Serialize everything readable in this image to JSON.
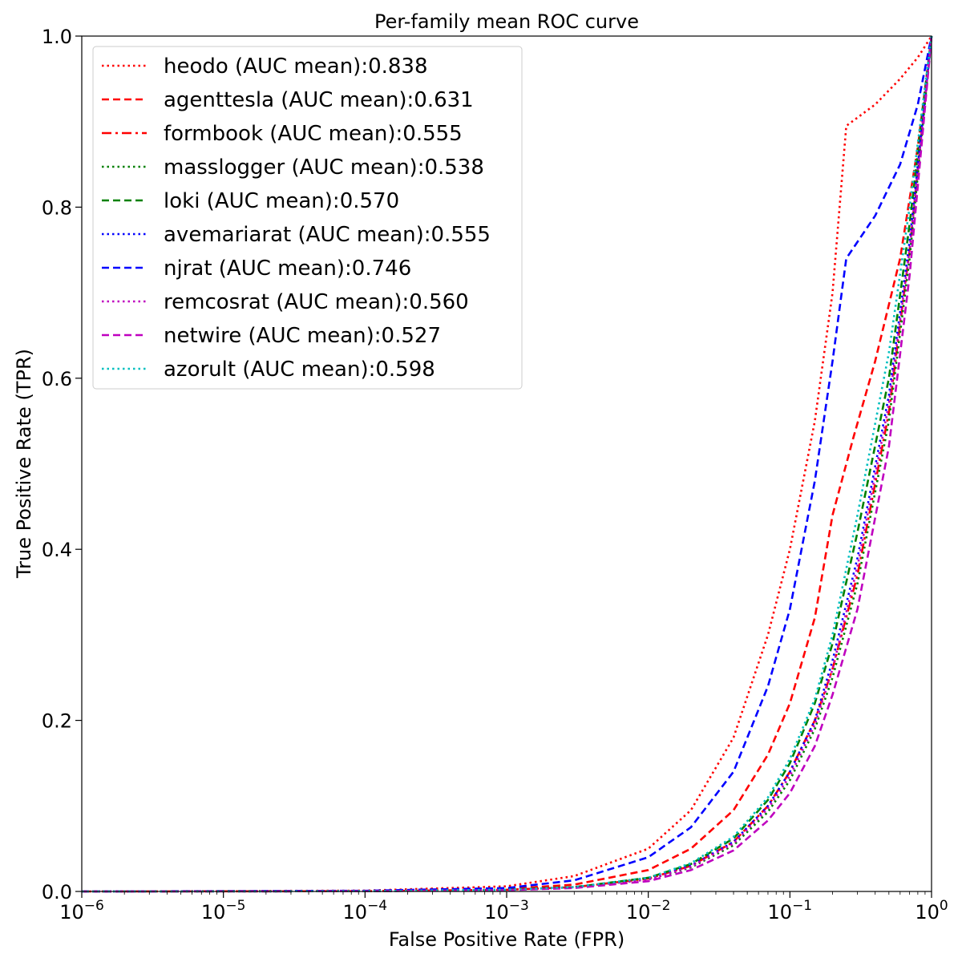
{
  "chart_data": {
    "type": "line",
    "title": "Per-family mean ROC curve",
    "xlabel": "False Positive Rate (FPR)",
    "ylabel": "True Positive Rate (TPR)",
    "xscale": "log",
    "xlim": [
      1e-06,
      1
    ],
    "ylim": [
      0.0,
      1.0
    ],
    "x_ticks": [
      {
        "value": 1e-06,
        "base": "10",
        "exp": "−6"
      },
      {
        "value": 1e-05,
        "base": "10",
        "exp": "−5"
      },
      {
        "value": 0.0001,
        "base": "10",
        "exp": "−4"
      },
      {
        "value": 0.001,
        "base": "10",
        "exp": "−3"
      },
      {
        "value": 0.01,
        "base": "10",
        "exp": "−2"
      },
      {
        "value": 0.1,
        "base": "10",
        "exp": "−1"
      },
      {
        "value": 1,
        "base": "10",
        "exp": "0"
      }
    ],
    "y_ticks": [
      {
        "value": 0.0,
        "label": "0.0"
      },
      {
        "value": 0.2,
        "label": "0.2"
      },
      {
        "value": 0.4,
        "label": "0.4"
      },
      {
        "value": 0.6,
        "label": "0.6"
      },
      {
        "value": 0.8,
        "label": "0.8"
      },
      {
        "value": 1.0,
        "label": "1.0"
      }
    ],
    "grid": false,
    "legend_position": "upper-left",
    "series": [
      {
        "name": "heodo (AUC mean):0.838",
        "color": "#ff0000",
        "dash": "dotted",
        "x": [
          1e-06,
          0.0001,
          0.001,
          0.003,
          0.01,
          0.02,
          0.04,
          0.07,
          0.1,
          0.15,
          0.2,
          0.25,
          0.4,
          0.6,
          0.8,
          1.0
        ],
        "y": [
          0.0,
          0.001,
          0.006,
          0.018,
          0.05,
          0.095,
          0.18,
          0.3,
          0.4,
          0.55,
          0.7,
          0.895,
          0.92,
          0.95,
          0.975,
          1.0
        ]
      },
      {
        "name": "agenttesla (AUC mean):0.631",
        "color": "#ff0000",
        "dash": "dashed",
        "x": [
          1e-06,
          0.0001,
          0.001,
          0.003,
          0.01,
          0.02,
          0.04,
          0.07,
          0.1,
          0.15,
          0.2,
          0.28,
          0.4,
          0.6,
          0.8,
          1.0
        ],
        "y": [
          0.0,
          0.0005,
          0.003,
          0.008,
          0.025,
          0.05,
          0.095,
          0.16,
          0.22,
          0.32,
          0.44,
          0.53,
          0.62,
          0.74,
          0.87,
          1.0
        ]
      },
      {
        "name": "formbook (AUC mean):0.555",
        "color": "#ff0000",
        "dash": "dashdot",
        "x": [
          1e-06,
          0.0001,
          0.001,
          0.003,
          0.01,
          0.02,
          0.04,
          0.07,
          0.1,
          0.15,
          0.2,
          0.3,
          0.5,
          0.7,
          1.0
        ],
        "y": [
          0.0,
          0.0003,
          0.002,
          0.005,
          0.015,
          0.03,
          0.058,
          0.1,
          0.14,
          0.2,
          0.26,
          0.37,
          0.56,
          0.75,
          1.0
        ]
      },
      {
        "name": "masslogger (AUC mean):0.538",
        "color": "#008000",
        "dash": "dotted",
        "x": [
          1e-06,
          0.0001,
          0.001,
          0.003,
          0.01,
          0.02,
          0.04,
          0.07,
          0.1,
          0.15,
          0.2,
          0.3,
          0.5,
          0.7,
          1.0
        ],
        "y": [
          0.0,
          0.0003,
          0.002,
          0.005,
          0.014,
          0.028,
          0.054,
          0.093,
          0.13,
          0.19,
          0.25,
          0.36,
          0.55,
          0.74,
          1.0
        ]
      },
      {
        "name": "loki (AUC mean):0.570",
        "color": "#008000",
        "dash": "dashed",
        "x": [
          1e-06,
          0.0001,
          0.001,
          0.003,
          0.01,
          0.02,
          0.04,
          0.07,
          0.1,
          0.15,
          0.2,
          0.3,
          0.5,
          0.7,
          1.0
        ],
        "y": [
          0.0,
          0.0003,
          0.002,
          0.005,
          0.016,
          0.032,
          0.062,
          0.107,
          0.15,
          0.22,
          0.29,
          0.42,
          0.6,
          0.78,
          1.0
        ]
      },
      {
        "name": "avemariarat (AUC mean):0.555",
        "color": "#0000ff",
        "dash": "dotted",
        "x": [
          1e-06,
          0.0001,
          0.001,
          0.003,
          0.01,
          0.02,
          0.04,
          0.07,
          0.1,
          0.15,
          0.2,
          0.3,
          0.5,
          0.7,
          1.0
        ],
        "y": [
          0.0,
          0.0003,
          0.002,
          0.005,
          0.015,
          0.03,
          0.058,
          0.1,
          0.14,
          0.2,
          0.27,
          0.39,
          0.58,
          0.76,
          1.0
        ]
      },
      {
        "name": "njrat (AUC mean):0.746",
        "color": "#0000ff",
        "dash": "dashed",
        "x": [
          1e-06,
          0.0001,
          0.001,
          0.003,
          0.01,
          0.02,
          0.04,
          0.07,
          0.1,
          0.15,
          0.2,
          0.25,
          0.4,
          0.6,
          0.8,
          1.0
        ],
        "y": [
          0.0,
          0.0008,
          0.004,
          0.013,
          0.04,
          0.075,
          0.14,
          0.24,
          0.33,
          0.48,
          0.62,
          0.74,
          0.79,
          0.85,
          0.92,
          1.0
        ]
      },
      {
        "name": "remcosrat (AUC mean):0.560",
        "color": "#bf00bf",
        "dash": "dotted",
        "x": [
          1e-06,
          0.0001,
          0.001,
          0.003,
          0.01,
          0.02,
          0.04,
          0.07,
          0.1,
          0.15,
          0.2,
          0.3,
          0.5,
          0.7,
          1.0
        ],
        "y": [
          0.0,
          0.0003,
          0.002,
          0.005,
          0.014,
          0.029,
          0.056,
          0.097,
          0.135,
          0.195,
          0.26,
          0.38,
          0.57,
          0.75,
          1.0
        ]
      },
      {
        "name": "netwire (AUC mean):0.527",
        "color": "#bf00bf",
        "dash": "dashed",
        "x": [
          1e-06,
          0.0001,
          0.001,
          0.003,
          0.01,
          0.02,
          0.04,
          0.07,
          0.1,
          0.15,
          0.2,
          0.3,
          0.5,
          0.7,
          1.0
        ],
        "y": [
          0.0,
          0.0003,
          0.0015,
          0.004,
          0.012,
          0.025,
          0.048,
          0.083,
          0.115,
          0.17,
          0.23,
          0.33,
          0.52,
          0.72,
          1.0
        ]
      },
      {
        "name": "azorult (AUC mean):0.598",
        "color": "#00bfbf",
        "dash": "dotted",
        "x": [
          1e-06,
          0.0001,
          0.001,
          0.003,
          0.01,
          0.02,
          0.04,
          0.07,
          0.1,
          0.15,
          0.2,
          0.3,
          0.5,
          0.7,
          1.0
        ],
        "y": [
          0.0,
          0.0003,
          0.002,
          0.005,
          0.016,
          0.033,
          0.064,
          0.11,
          0.155,
          0.225,
          0.3,
          0.44,
          0.63,
          0.8,
          1.0
        ]
      }
    ]
  }
}
